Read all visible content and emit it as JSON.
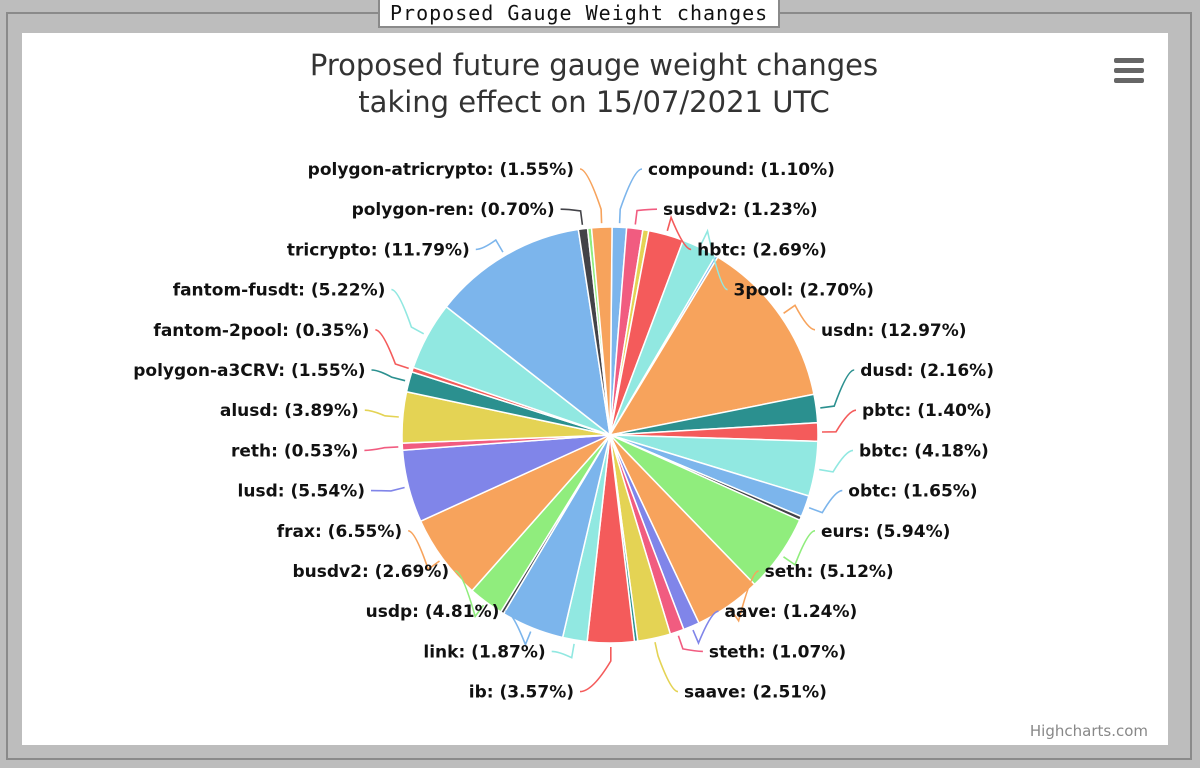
{
  "window": {
    "title": "Proposed Gauge Weight changes"
  },
  "chart_data": {
    "type": "pie",
    "title_lines": [
      "Proposed future gauge weight changes",
      "taking effect on 15/07/2021 UTC"
    ],
    "credits": "Highcharts.com",
    "menu_icon": "hamburger-menu-icon",
    "slices": [
      {
        "name": "compound",
        "value": 1.1,
        "label": "compound: (1.10%)",
        "color": "#7cb5ec"
      },
      {
        "name": "susdv2",
        "value": 1.23,
        "label": "susdv2: (1.23%)",
        "color": "#f15c80"
      },
      {
        "name": "",
        "value": 0.45,
        "label": "",
        "color": "#e4d354"
      },
      {
        "name": "hbtc",
        "value": 2.69,
        "label": "hbtc: (2.69%)",
        "color": "#f45b5b"
      },
      {
        "name": "3pool",
        "value": 2.7,
        "label": "3pool: (2.70%)",
        "color": "#91e8e1"
      },
      {
        "name": "",
        "value": 0.2,
        "label": "",
        "color": "#7cb5ec"
      },
      {
        "name": "usdn",
        "value": 12.97,
        "label": "usdn: (12.97%)",
        "color": "#f7a35c"
      },
      {
        "name": "dusd",
        "value": 2.16,
        "label": "dusd: (2.16%)",
        "color": "#2b908f"
      },
      {
        "name": "pbtc",
        "value": 1.4,
        "label": "pbtc: (1.40%)",
        "color": "#f45b5b"
      },
      {
        "name": "bbtc",
        "value": 4.18,
        "label": "bbtc: (4.18%)",
        "color": "#91e8e1"
      },
      {
        "name": "obtc",
        "value": 1.65,
        "label": "obtc: (1.65%)",
        "color": "#7cb5ec"
      },
      {
        "name": "",
        "value": 0.3,
        "label": "",
        "color": "#434348"
      },
      {
        "name": "eurs",
        "value": 5.94,
        "label": "eurs: (5.94%)",
        "color": "#90ed7d"
      },
      {
        "name": "seth",
        "value": 5.12,
        "label": "seth: (5.12%)",
        "color": "#f7a35c"
      },
      {
        "name": "aave",
        "value": 1.24,
        "label": "aave: (1.24%)",
        "color": "#8085e9"
      },
      {
        "name": "steth",
        "value": 1.07,
        "label": "steth: (1.07%)",
        "color": "#f15c80"
      },
      {
        "name": "saave",
        "value": 2.51,
        "label": "saave: (2.51%)",
        "color": "#e4d354"
      },
      {
        "name": "",
        "value": 0.25,
        "label": "",
        "color": "#2b908f"
      },
      {
        "name": "ib",
        "value": 3.57,
        "label": "ib: (3.57%)",
        "color": "#f45b5b"
      },
      {
        "name": "link",
        "value": 1.87,
        "label": "link: (1.87%)",
        "color": "#91e8e1"
      },
      {
        "name": "usdp",
        "value": 4.81,
        "label": "usdp: (4.81%)",
        "color": "#7cb5ec"
      },
      {
        "name": "",
        "value": 0.25,
        "label": "",
        "color": "#434348"
      },
      {
        "name": "busdv2",
        "value": 2.69,
        "label": "busdv2: (2.69%)",
        "color": "#90ed7d"
      },
      {
        "name": "frax",
        "value": 6.55,
        "label": "frax: (6.55%)",
        "color": "#f7a35c"
      },
      {
        "name": "lusd",
        "value": 5.54,
        "label": "lusd: (5.54%)",
        "color": "#8085e9"
      },
      {
        "name": "reth",
        "value": 0.53,
        "label": "reth: (0.53%)",
        "color": "#f15c80"
      },
      {
        "name": "alusd",
        "value": 3.89,
        "label": "alusd: (3.89%)",
        "color": "#e4d354"
      },
      {
        "name": "polygon-a3CRV",
        "value": 1.55,
        "label": "polygon-a3CRV: (1.55%)",
        "color": "#2b908f"
      },
      {
        "name": "fantom-2pool",
        "value": 0.35,
        "label": "fantom-2pool: (0.35%)",
        "color": "#f45b5b"
      },
      {
        "name": "fantom-fusdt",
        "value": 5.22,
        "label": "fantom-fusdt: (5.22%)",
        "color": "#91e8e1"
      },
      {
        "name": "tricrypto",
        "value": 11.79,
        "label": "tricrypto: (11.79%)",
        "color": "#7cb5ec"
      },
      {
        "name": "polygon-ren",
        "value": 0.7,
        "label": "polygon-ren: (0.70%)",
        "color": "#434348"
      },
      {
        "name": "",
        "value": 0.3,
        "label": "",
        "color": "#90ed7d"
      },
      {
        "name": "polygon-atricrypto",
        "value": 1.55,
        "label": "polygon-atricrypto: (1.55%)",
        "color": "#f7a35c"
      }
    ],
    "right_labels": [
      "compound",
      "susdv2",
      "hbtc",
      "3pool",
      "usdn",
      "dusd",
      "pbtc",
      "bbtc",
      "obtc",
      "eurs",
      "seth",
      "aave",
      "steth",
      "saave"
    ],
    "left_labels": [
      "polygon-atricrypto",
      "polygon-ren",
      "tricrypto",
      "fantom-fusdt",
      "fantom-2pool",
      "polygon-a3CRV",
      "alusd",
      "reth",
      "lusd",
      "frax",
      "busdv2",
      "usdp",
      "link",
      "ib"
    ]
  }
}
